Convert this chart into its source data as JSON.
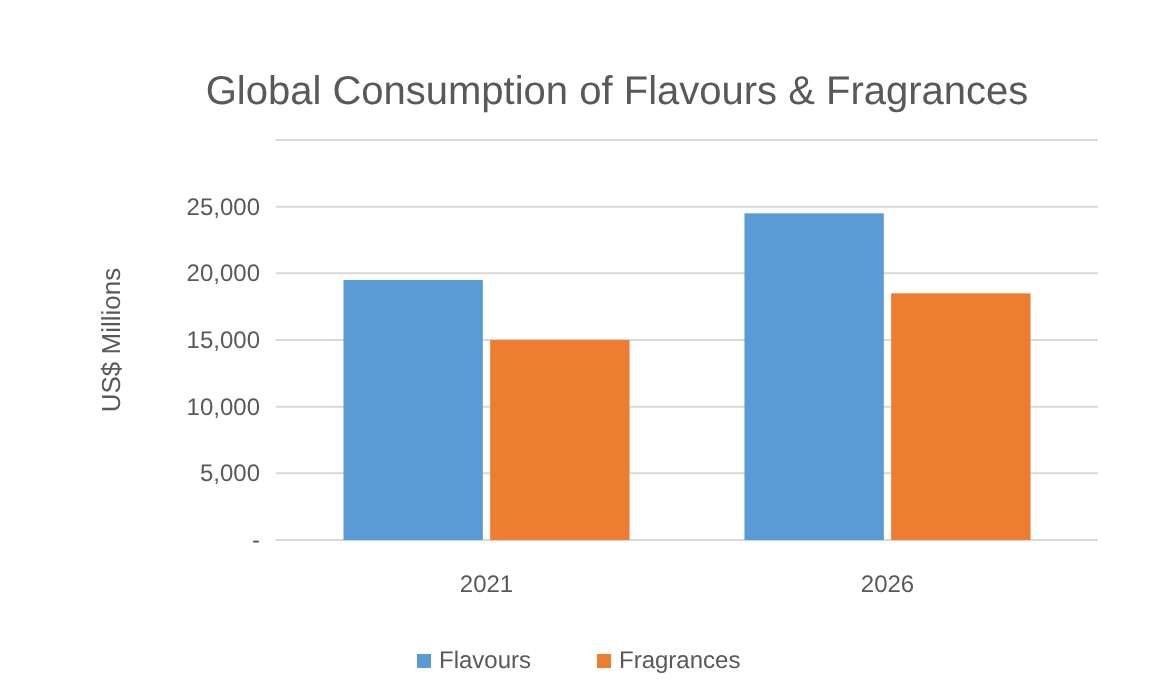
{
  "chart_data": {
    "type": "bar",
    "title": "Global Consumption of Flavours & Fragrances",
    "ylabel": "US$ Millions",
    "categories": [
      "2021",
      "2026"
    ],
    "series": [
      {
        "name": "Flavours",
        "color": "#5b9bd5",
        "values": [
          19500,
          24500
        ]
      },
      {
        "name": "Fragrances",
        "color": "#ed7d31",
        "values": [
          15000,
          18500
        ]
      }
    ],
    "ylim": [
      0,
      30000
    ],
    "yticks": [
      {
        "value": 0,
        "label": "-"
      },
      {
        "value": 5000,
        "label": "5,000"
      },
      {
        "value": 10000,
        "label": "10,000"
      },
      {
        "value": 15000,
        "label": "15,000"
      },
      {
        "value": 20000,
        "label": "20,000"
      },
      {
        "value": 25000,
        "label": "25,000"
      },
      {
        "value": 30000,
        "label": null
      }
    ],
    "grid": true,
    "legend": "bottom"
  }
}
